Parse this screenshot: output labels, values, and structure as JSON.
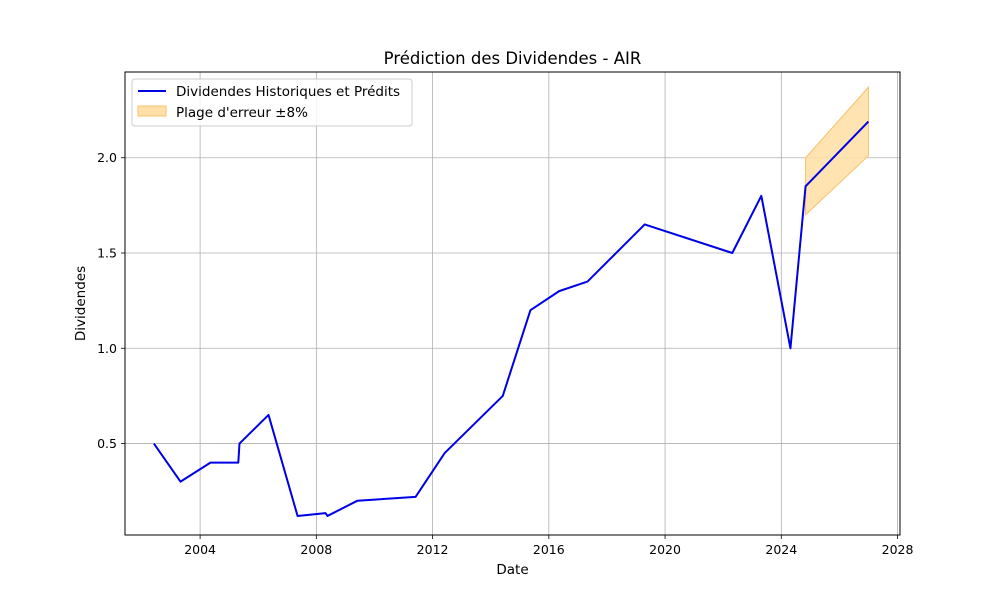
{
  "chart_data": {
    "type": "line",
    "title": "Prédiction des Dividendes - AIR",
    "xlabel": "Date",
    "ylabel": "Dividendes",
    "xlim": [
      "2001-06-01",
      "2028-02-01"
    ],
    "ylim": [
      0.02,
      2.45
    ],
    "x_ticks": [
      "2004",
      "2008",
      "2012",
      "2016",
      "2020",
      "2024",
      "2028"
    ],
    "y_ticks": [
      "0.5",
      "1.0",
      "1.5",
      "2.0"
    ],
    "grid": true,
    "legend_position": "top-left",
    "colors": {
      "line": "#0000e6",
      "band_fill": "#ffe0a8",
      "band_edge": "#f5c26b"
    },
    "series": [
      {
        "name": "Dividendes Historiques et Prédits",
        "points": [
          {
            "x": "2002-05-30",
            "y": 0.5
          },
          {
            "x": "2003-04-30",
            "y": 0.3
          },
          {
            "x": "2004-05-10",
            "y": 0.4
          },
          {
            "x": "2005-04-25",
            "y": 0.4
          },
          {
            "x": "2005-05-10",
            "y": 0.5
          },
          {
            "x": "2006-05-10",
            "y": 0.65
          },
          {
            "x": "2007-05-10",
            "y": 0.12
          },
          {
            "x": "2008-04-25",
            "y": 0.135
          },
          {
            "x": "2008-05-20",
            "y": 0.12
          },
          {
            "x": "2009-06-01",
            "y": 0.2
          },
          {
            "x": "2011-06-01",
            "y": 0.22
          },
          {
            "x": "2012-06-01",
            "y": 0.45
          },
          {
            "x": "2014-06-01",
            "y": 0.75
          },
          {
            "x": "2015-05-15",
            "y": 1.2
          },
          {
            "x": "2016-05-10",
            "y": 1.3
          },
          {
            "x": "2017-05-01",
            "y": 1.35
          },
          {
            "x": "2019-04-20",
            "y": 1.65
          },
          {
            "x": "2022-04-25",
            "y": 1.5
          },
          {
            "x": "2023-04-25",
            "y": 1.8
          },
          {
            "x": "2024-04-25",
            "y": 1.0
          },
          {
            "x": "2024-11-01",
            "y": 1.85
          },
          {
            "x": "2026-12-31",
            "y": 2.19
          }
        ]
      }
    ],
    "error_band": {
      "name": "Plage d'erreur ±8%",
      "points": [
        {
          "x": "2024-11-01",
          "low": 1.7,
          "high": 2.0
        },
        {
          "x": "2026-12-31",
          "low": 2.01,
          "high": 2.37
        }
      ]
    }
  }
}
